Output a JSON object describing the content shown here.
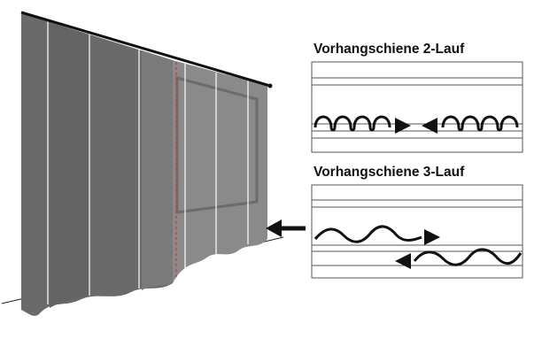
{
  "panels": [
    {
      "title": "Vorhangschiene 2-Lauf",
      "runs": 2
    },
    {
      "title": "Vorhangschiene 3-Lauf",
      "runs": 3
    }
  ],
  "colors": {
    "curtain_dark": "#6a6a6a",
    "curtain_mid": "#7a7a7a",
    "curtain_light": "#8c8c8c",
    "seam": "#ffffff",
    "red_dashed": "#d43a3a",
    "rail": "#111111",
    "ink": "#111111",
    "panel_border": "#555555"
  },
  "icons": {
    "pointer": "arrow-left-icon"
  }
}
